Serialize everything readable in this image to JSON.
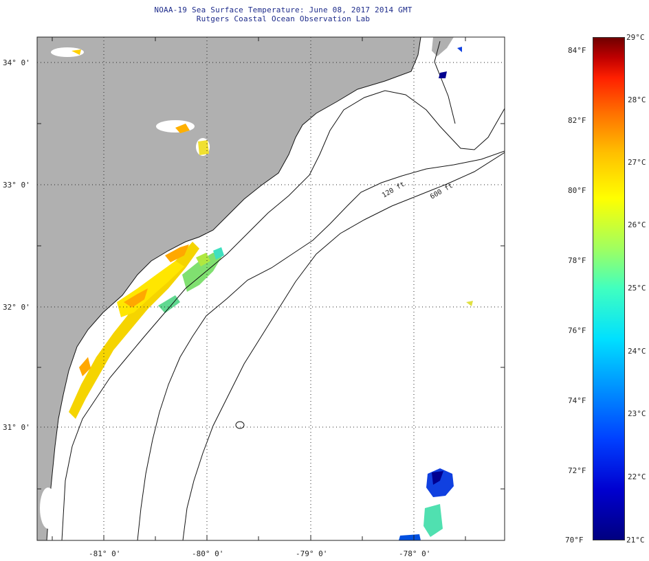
{
  "title": {
    "line1": "NOAA-19 Sea Surface Temperature:  June 08, 2017 2014 GMT",
    "line2": "Rutgers Coastal Ocean Observation Lab"
  },
  "axes": {
    "lat_labels": [
      "34° 0'",
      "33° 0'",
      "32° 0'",
      "31° 0'"
    ],
    "lon_labels": [
      "-81° 0'",
      "-80° 0'",
      "-79° 0'",
      "-78° 0'"
    ]
  },
  "isobaths": {
    "shallow_label": "120 ft",
    "deep_label": "600 ft"
  },
  "colorbar": {
    "fahrenheit": [
      "84°F",
      "82°F",
      "80°F",
      "78°F",
      "76°F",
      "74°F",
      "72°F",
      "70°F"
    ],
    "celsius": [
      "29°C",
      "28°C",
      "27°C",
      "26°C",
      "25°C",
      "24°C",
      "23°C",
      "22°C",
      "21°C"
    ]
  },
  "colors": {
    "land": "#b0b0b0",
    "ocean": "#ffffff",
    "border": "#222222"
  }
}
